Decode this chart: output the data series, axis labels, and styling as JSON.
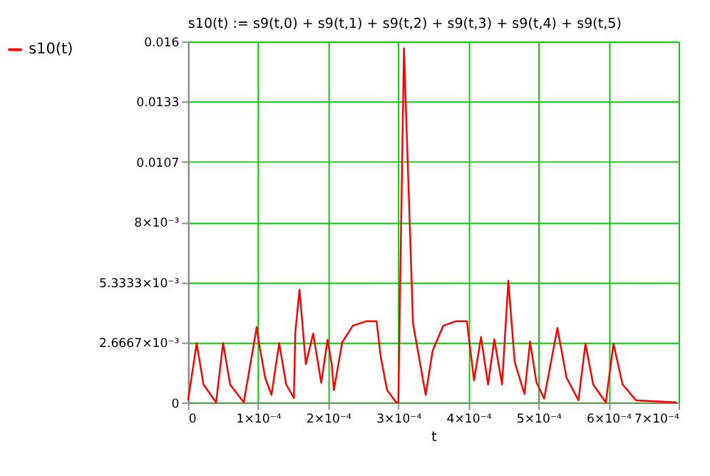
{
  "chart_data": {
    "type": "line",
    "title": "s10(t) := s9(t,0) + s9(t,1) + s9(t,2) + s9(t,3) + s9(t,4) + s9(t,5)",
    "xlabel": "t",
    "x": [
      0,
      1.23e-05,
      2.2e-05,
      4e-05,
      5e-05,
      6e-05,
      7.95e-05,
      9.8e-05,
      0.000101,
      0.00011,
      0.000119,
      0.00013,
      0.00014,
      0.000151,
      0.000153,
      0.000159,
      0.000168,
      0.0001785,
      0.00019,
      0.000199,
      0.000205,
      0.000208,
      0.00022,
      0.000235,
      0.000254,
      0.000269,
      0.000275,
      0.000284,
      0.000297,
      0.0003,
      0.000308,
      0.000321,
      0.000339,
      0.000349,
      0.000364,
      0.000382,
      0.000398,
      0.000399,
      0.000408,
      0.000418,
      0.000428,
      0.000437,
      0.000448,
      0.000457,
      0.000466,
      0.00048,
      0.000488,
      0.000497,
      0.000508,
      0.000527,
      0.00054,
      0.000557,
      0.000567,
      0.000578,
      0.000596,
      0.000607,
      0.00062,
      0.000639,
      0.000697
    ],
    "series": [
      {
        "name": "s10(t)",
        "color": "#ff0000",
        "values": [
          0.0001,
          0.00263,
          0.0008,
          0.0,
          0.00263,
          0.0008,
          0.0,
          0.00335,
          0.00267,
          0.0011,
          0.00034,
          0.00263,
          0.0008,
          0.0002,
          0.0031,
          0.005,
          0.0017,
          0.00305,
          0.00087,
          0.00278,
          0.0017,
          0.00055,
          0.00267,
          0.0034,
          0.0036,
          0.0036,
          0.002,
          0.00055,
          0.0,
          0.0,
          0.0157,
          0.0035,
          0.00034,
          0.0023,
          0.0034,
          0.0036,
          0.0036,
          0.0033,
          0.00098,
          0.0029,
          0.0008,
          0.0028,
          0.0008,
          0.0054,
          0.0018,
          0.00038,
          0.0027,
          0.0009,
          0.00017,
          0.0033,
          0.0011,
          0.0001,
          0.0026,
          0.0008,
          0.0,
          0.0026,
          0.0008,
          0.0001,
          0.0
        ]
      }
    ],
    "xlim": [
      0,
      0.0007
    ],
    "ylim": [
      0,
      0.016
    ],
    "xticks": [
      0,
      {
        "value": 0.0001,
        "label": "1×10⁻⁴"
      },
      {
        "value": 0.0002,
        "label": "2×10⁻⁴"
      },
      {
        "value": 0.0003,
        "label": "3×10⁻⁴"
      },
      {
        "value": 0.0004,
        "label": "4×10⁻⁴"
      },
      {
        "value": 0.0005,
        "label": "5×10⁻⁴"
      },
      {
        "value": 0.0006,
        "label": "6×10⁻⁴"
      },
      {
        "value": 0.0007,
        "label": "7×10⁻⁴"
      }
    ],
    "yticks": [
      0,
      {
        "value": 0.0026667,
        "label": "2.6667×10⁻³"
      },
      {
        "value": 0.0053333,
        "label": "5.3333×10⁻³"
      },
      {
        "value": 0.008,
        "label": "8×10⁻³"
      },
      {
        "value": 0.010667,
        "label": "0.0107"
      },
      {
        "value": 0.013333,
        "label": "0.0133"
      },
      0.016
    ],
    "grid": true,
    "legend": "left",
    "marker": "none",
    "line_style": "solid"
  }
}
